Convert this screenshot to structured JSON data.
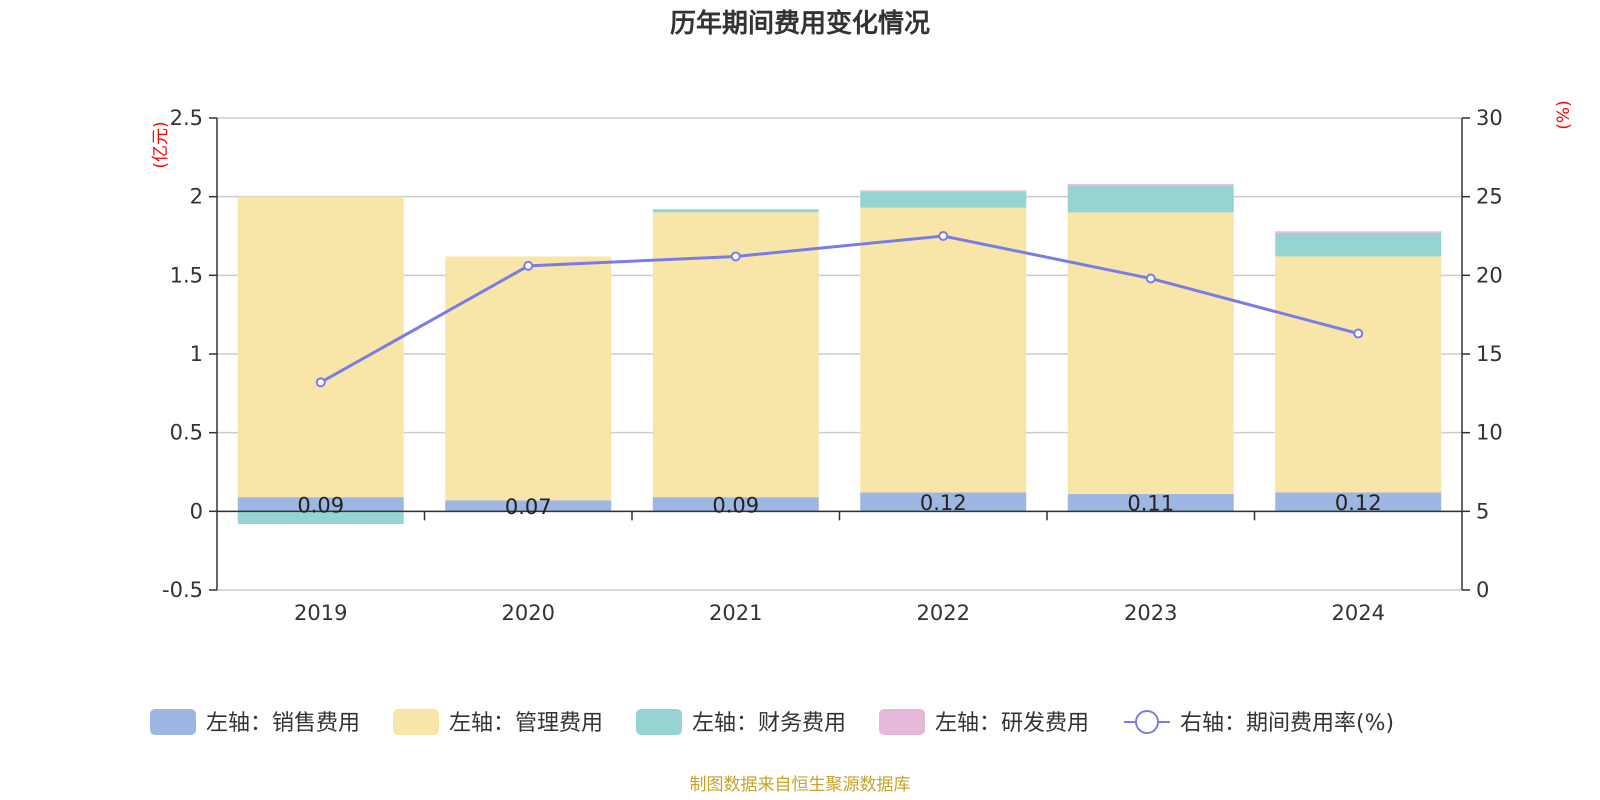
{
  "chart_data": {
    "type": "bar",
    "title": "历年期间费用变化情况",
    "categories": [
      "2019",
      "2020",
      "2021",
      "2022",
      "2023",
      "2024"
    ],
    "left_axis": {
      "unit_label": "(亿元)",
      "range": [
        -0.5,
        2.5
      ],
      "ticks": [
        "-0.5",
        "0",
        "0.5",
        "1",
        "1.5",
        "2",
        "2.5"
      ]
    },
    "right_axis": {
      "unit_label": "(%)",
      "range": [
        0,
        30
      ],
      "ticks": [
        "0",
        "5",
        "10",
        "15",
        "20",
        "25",
        "30"
      ]
    },
    "series": [
      {
        "name": "左轴：销售费用",
        "axis": "left",
        "type": "bar",
        "color": "#9db6e2",
        "values": [
          0.09,
          0.07,
          0.09,
          0.12,
          0.11,
          0.12
        ],
        "labels": [
          "0.09",
          "0.07",
          "0.09",
          "0.12",
          "0.11",
          "0.12"
        ]
      },
      {
        "name": "左轴：管理费用",
        "axis": "left",
        "type": "bar",
        "color": "#f8e6a8",
        "values": [
          1.91,
          1.55,
          1.81,
          1.81,
          1.79,
          1.5
        ]
      },
      {
        "name": "左轴：财务费用",
        "axis": "left",
        "type": "bar",
        "color": "#96d4d4",
        "values": [
          -0.08,
          0.0,
          0.02,
          0.1,
          0.17,
          0.15
        ]
      },
      {
        "name": "左轴：研发费用",
        "axis": "left",
        "type": "bar",
        "color": "#e6b8da",
        "values": [
          0.0,
          0.0,
          0.0,
          0.01,
          0.01,
          0.01
        ]
      },
      {
        "name": "右轴：期间费用率(%)",
        "axis": "right",
        "type": "line",
        "color": "#7b7be8",
        "values": [
          13.2,
          20.6,
          21.2,
          22.5,
          19.8,
          16.3
        ]
      }
    ],
    "grid": true,
    "legend_position": "bottom",
    "source_note": "制图数据来自恒生聚源数据库"
  }
}
